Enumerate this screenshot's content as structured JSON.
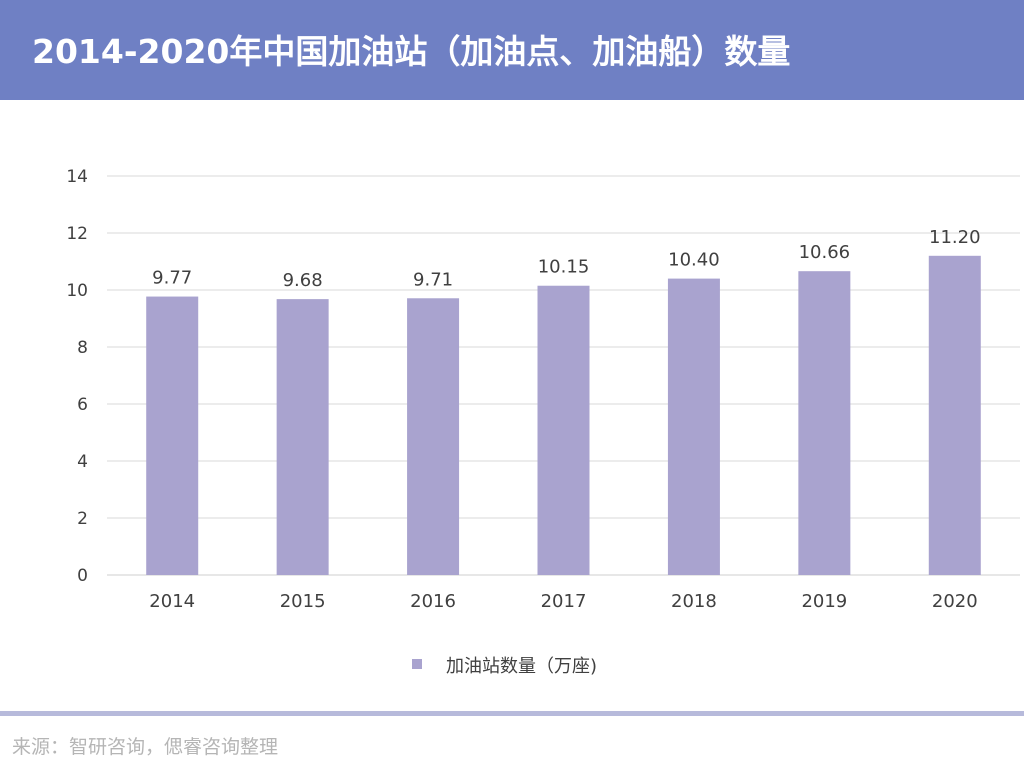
{
  "header": {
    "title": "2014-2020年中国加油站（加油点、加油船）数量"
  },
  "chart_data": {
    "type": "bar",
    "categories": [
      "2014",
      "2015",
      "2016",
      "2017",
      "2018",
      "2019",
      "2020"
    ],
    "series": [
      {
        "name": "加油站数量（万座)",
        "values": [
          9.77,
          9.68,
          9.71,
          10.15,
          10.4,
          10.66,
          11.2
        ],
        "labels": [
          "9.77",
          "9.68",
          "9.71",
          "10.15",
          "10.40",
          "10.66",
          "11.20"
        ],
        "color": "#a9a3cf"
      }
    ],
    "ylim": [
      0,
      14
    ],
    "yticks": [
      "0",
      "2",
      "4",
      "6",
      "8",
      "10",
      "12",
      "14"
    ],
    "grid": true,
    "legend_position": "bottom-center"
  },
  "footer": {
    "source": "来源：智研咨询，偲睿咨询整理"
  },
  "colors": {
    "header_bg": "#6f80c4",
    "bar": "#a9a3cf",
    "grid": "#d9d9d9",
    "tick_text": "#404040",
    "rule": "#b7badb",
    "source_text": "#b5b5b5"
  }
}
